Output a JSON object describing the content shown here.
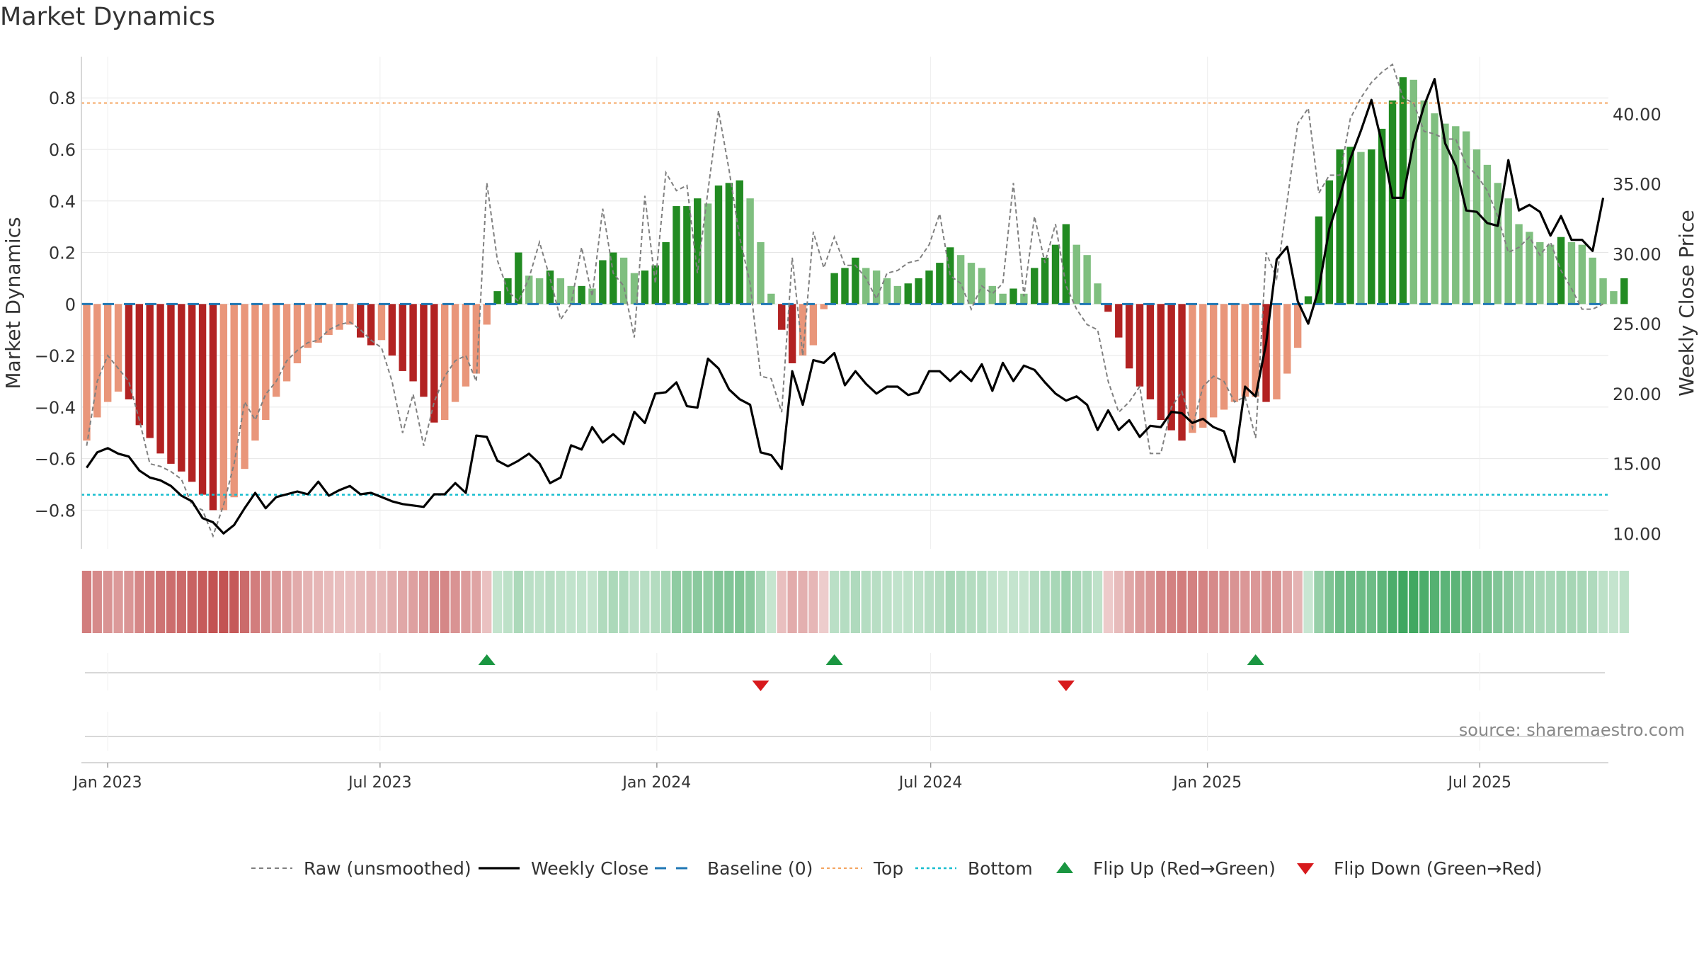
{
  "title": "Market Dynamics",
  "source": "source: sharemaestro.com",
  "colors": {
    "bar_dark_red": "#b22222",
    "bar_light_red": "#e9967a",
    "bar_dark_green": "#228b22",
    "bar_light_green": "#7fbf7f",
    "close": "#000000",
    "raw": "#808080",
    "baseline": "#1f77b4",
    "top": "#f4a460",
    "bottom": "#17becf",
    "flip_up": "#1a9641",
    "flip_down": "#d7191c"
  },
  "chart_data": {
    "type": "bar",
    "title": "Market Dynamics",
    "ylabel": "Market Dynamics",
    "y2label": "Weekly Close Price",
    "ylim": [
      -0.95,
      0.96
    ],
    "y2lim": [
      8.9,
      44.1
    ],
    "yticks": [
      -0.8,
      -0.6,
      -0.4,
      -0.2,
      0,
      0.2,
      0.4,
      0.6,
      0.8
    ],
    "ytick_labels": [
      "−0.8",
      "−0.6",
      "−0.4",
      "−0.2",
      "0",
      "0.2",
      "0.4",
      "0.6",
      "0.8"
    ],
    "y2ticks": [
      10,
      15,
      20,
      25,
      30,
      35,
      40
    ],
    "y2tick_labels": [
      "10.00",
      "15.00",
      "20.00",
      "25.00",
      "30.00",
      "35.00",
      "40.00"
    ],
    "xtick_labels": [
      "Jan 2023",
      "Jul 2023",
      "Jan 2024",
      "Jul 2024",
      "Jan 2025",
      "Jul 2025"
    ],
    "xtick_dates": [
      "2023-01-01",
      "2023-07-01",
      "2024-01-01",
      "2024-07-01",
      "2025-01-01",
      "2025-07-01"
    ],
    "top_level": 0.78,
    "bottom_level": -0.74,
    "baseline": 0,
    "grid": true,
    "legend_position": "bottom",
    "series": [
      {
        "name": "Raw (unsmoothed)",
        "style": "dashed"
      },
      {
        "name": "Weekly Close",
        "style": "solid"
      },
      {
        "name": "Baseline (0)",
        "style": "dashed"
      },
      {
        "name": "Top",
        "style": "dotted"
      },
      {
        "name": "Bottom",
        "style": "dotted"
      },
      {
        "name": "Flip Up (Red→Green)",
        "style": "marker-up"
      },
      {
        "name": "Flip Down (Green→Red)",
        "style": "marker-down"
      }
    ],
    "start_date": "2022-12-18",
    "weeks": 145,
    "dynamics": [
      -0.53,
      -0.44,
      -0.38,
      -0.34,
      -0.37,
      -0.47,
      -0.52,
      -0.58,
      -0.62,
      -0.65,
      -0.69,
      -0.74,
      -0.8,
      -0.8,
      -0.75,
      -0.64,
      -0.53,
      -0.45,
      -0.36,
      -0.3,
      -0.23,
      -0.17,
      -0.15,
      -0.12,
      -0.1,
      -0.08,
      -0.13,
      -0.16,
      -0.14,
      -0.2,
      -0.26,
      -0.3,
      -0.36,
      -0.46,
      -0.45,
      -0.38,
      -0.32,
      -0.27,
      -0.08,
      0.05,
      0.1,
      0.2,
      0.11,
      0.1,
      0.13,
      0.1,
      0.07,
      0.07,
      0.06,
      0.17,
      0.2,
      0.18,
      0.12,
      0.13,
      0.15,
      0.24,
      0.38,
      0.38,
      0.41,
      0.39,
      0.46,
      0.47,
      0.48,
      0.41,
      0.24,
      0.04,
      -0.1,
      -0.23,
      -0.2,
      -0.16,
      -0.02,
      0.12,
      0.14,
      0.18,
      0.14,
      0.13,
      0.1,
      0.07,
      0.08,
      0.1,
      0.13,
      0.16,
      0.22,
      0.19,
      0.16,
      0.14,
      0.07,
      0.04,
      0.06,
      0.04,
      0.14,
      0.18,
      0.23,
      0.31,
      0.23,
      0.19,
      0.08,
      -0.03,
      -0.13,
      -0.25,
      -0.32,
      -0.37,
      -0.45,
      -0.49,
      -0.53,
      -0.5,
      -0.48,
      -0.44,
      -0.41,
      -0.38,
      -0.36,
      -0.36,
      -0.38,
      -0.37,
      -0.27,
      -0.17,
      0.03,
      0.34,
      0.48,
      0.6,
      0.61,
      0.59,
      0.6,
      0.68,
      0.79,
      0.88,
      0.87,
      0.79,
      0.74,
      0.7,
      0.69,
      0.67,
      0.6,
      0.54,
      0.47,
      0.41,
      0.31,
      0.28,
      0.24,
      0.23,
      0.26,
      0.24,
      0.23,
      0.18,
      0.1,
      0.05,
      0.1
    ],
    "close": [
      14.7,
      15.8,
      16.1,
      15.7,
      15.5,
      14.5,
      14.0,
      13.8,
      13.4,
      12.7,
      12.3,
      11.1,
      10.8,
      10.0,
      10.6,
      11.8,
      12.9,
      11.8,
      12.6,
      12.8,
      13.0,
      12.8,
      13.7,
      12.7,
      13.1,
      13.4,
      12.8,
      12.9,
      12.6,
      12.3,
      12.1,
      12.0,
      11.9,
      12.8,
      12.8,
      13.6,
      12.9,
      17.0,
      16.9,
      15.2,
      14.8,
      15.2,
      15.7,
      15.0,
      13.6,
      14.0,
      16.3,
      16.0,
      17.6,
      16.5,
      17.1,
      16.4,
      18.7,
      17.9,
      20.0,
      20.1,
      20.8,
      19.1,
      19.0,
      22.5,
      21.8,
      20.3,
      19.6,
      19.2,
      15.8,
      15.6,
      14.6,
      21.6,
      19.2,
      22.4,
      22.2,
      22.9,
      20.6,
      21.6,
      20.7,
      20.0,
      20.5,
      20.5,
      19.9,
      20.1,
      21.6,
      21.6,
      20.9,
      21.6,
      20.9,
      22.1,
      20.2,
      22.2,
      20.9,
      22.0,
      21.7,
      20.8,
      20.0,
      19.5,
      19.8,
      19.2,
      17.4,
      18.8,
      17.4,
      18.1,
      16.9,
      17.7,
      17.6,
      18.7,
      18.6,
      17.9,
      18.2,
      17.6,
      17.3,
      15.1,
      20.5,
      19.8,
      23.6,
      29.6,
      30.5,
      26.6,
      25.0,
      27.5,
      31.8,
      34.1,
      36.8,
      38.8,
      41.0,
      37.9,
      34.0,
      34.0,
      38.0,
      40.6,
      42.5,
      37.9,
      36.3,
      33.1,
      33.0,
      32.2,
      32.0,
      36.7,
      33.1,
      33.5,
      33.0,
      31.3,
      32.7,
      31.0,
      31.0,
      30.2,
      34.0
    ],
    "raw": [
      -0.55,
      -0.3,
      -0.2,
      -0.25,
      -0.3,
      -0.45,
      -0.62,
      -0.63,
      -0.65,
      -0.68,
      -0.78,
      -0.8,
      -0.9,
      -0.78,
      -0.62,
      -0.38,
      -0.45,
      -0.35,
      -0.3,
      -0.22,
      -0.18,
      -0.15,
      -0.14,
      -0.1,
      -0.08,
      -0.07,
      -0.1,
      -0.14,
      -0.17,
      -0.3,
      -0.5,
      -0.35,
      -0.55,
      -0.38,
      -0.28,
      -0.22,
      -0.2,
      -0.3,
      0.47,
      0.17,
      0.05,
      0.01,
      0.1,
      0.24,
      0.1,
      -0.06,
      0.0,
      0.22,
      0.03,
      0.37,
      0.12,
      0.07,
      -0.13,
      0.42,
      0.08,
      0.51,
      0.44,
      0.46,
      0.12,
      0.44,
      0.75,
      0.52,
      0.26,
      0.08,
      -0.28,
      -0.29,
      -0.42,
      0.18,
      -0.2,
      0.28,
      0.14,
      0.26,
      0.15,
      0.15,
      0.1,
      0.02,
      0.12,
      0.13,
      0.16,
      0.17,
      0.23,
      0.35,
      0.11,
      0.08,
      -0.02,
      0.07,
      0.04,
      0.08,
      0.47,
      0.03,
      0.34,
      0.16,
      0.31,
      0.07,
      -0.02,
      -0.08,
      -0.1,
      -0.3,
      -0.42,
      -0.38,
      -0.32,
      -0.58,
      -0.58,
      -0.4,
      -0.34,
      -0.48,
      -0.32,
      -0.28,
      -0.3,
      -0.38,
      -0.36,
      -0.52,
      0.2,
      0.1,
      0.4,
      0.7,
      0.76,
      0.43,
      0.5,
      0.5,
      0.72,
      0.8,
      0.86,
      0.9,
      0.93,
      0.8,
      0.78,
      0.67,
      0.66,
      0.64,
      0.64,
      0.54,
      0.5,
      0.44,
      0.34,
      0.2,
      0.22,
      0.26,
      0.19,
      0.24,
      0.13,
      0.06,
      -0.02,
      -0.02,
      0.0
    ],
    "flip_up_dates": [
      "2023-09-10",
      "2024-04-28",
      "2025-02-02"
    ],
    "flip_down_dates": [
      "2024-03-10",
      "2024-09-29"
    ]
  }
}
